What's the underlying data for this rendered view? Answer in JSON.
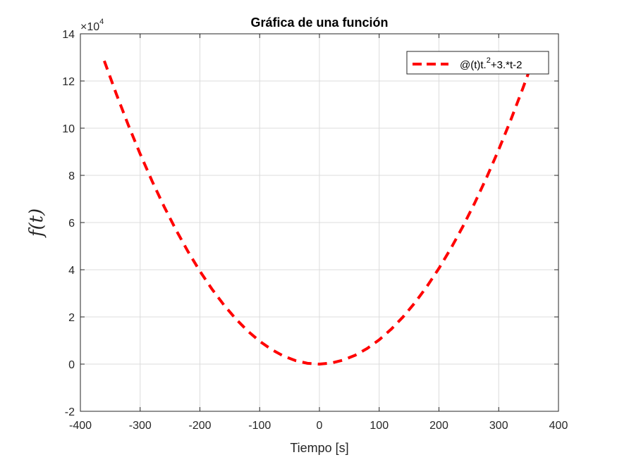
{
  "colors": {
    "line": "#ff0000",
    "grid": "#dcdcdc",
    "axis": "#262626"
  },
  "chart_data": {
    "type": "line",
    "title": "Gráfica de una función",
    "xlabel": "Tiempo [s]",
    "ylabel": "f(t)",
    "xlim": [
      -400,
      400
    ],
    "ylim": [
      -20000,
      140000
    ],
    "x_ticks": [
      -400,
      -300,
      -200,
      -100,
      0,
      100,
      200,
      300,
      400
    ],
    "x_tick_labels": [
      "-400",
      "-300",
      "-200",
      "-100",
      "0",
      "100",
      "200",
      "300",
      "400"
    ],
    "y_ticks": [
      -20000,
      0,
      20000,
      40000,
      60000,
      80000,
      100000,
      120000,
      140000
    ],
    "y_tick_labels": [
      "-2",
      "0",
      "2",
      "4",
      "6",
      "8",
      "10",
      "12",
      "14"
    ],
    "y_exponent_base": "10",
    "y_exponent_power": "4",
    "grid": true,
    "legend_position": "top-right",
    "series": [
      {
        "name": "@(t)t.^2+3.*t-2",
        "legend_main": "@(t)t.",
        "legend_sup": "2",
        "legend_rest": "+3.*t-2",
        "line_style": "dashed",
        "color": "#ff0000",
        "x": [
          -360,
          -340,
          -320,
          -300,
          -280,
          -260,
          -240,
          -220,
          -200,
          -180,
          -160,
          -140,
          -120,
          -100,
          -80,
          -60,
          -40,
          -20,
          0,
          20,
          40,
          60,
          80,
          100,
          120,
          140,
          160,
          180,
          200,
          220,
          240,
          260,
          280,
          300,
          320,
          340,
          350
        ],
        "y": [
          128518,
          114578,
          101438,
          89098,
          77558,
          66818,
          56878,
          47738,
          39398,
          31858,
          25118,
          19178,
          14038,
          9698,
          6158,
          3418,
          1478,
          338,
          -2,
          458,
          1718,
          3778,
          6638,
          10298,
          14758,
          20018,
          26078,
          32938,
          40598,
          49058,
          58318,
          68378,
          79238,
          90898,
          103358,
          116618,
          123548
        ]
      }
    ]
  }
}
